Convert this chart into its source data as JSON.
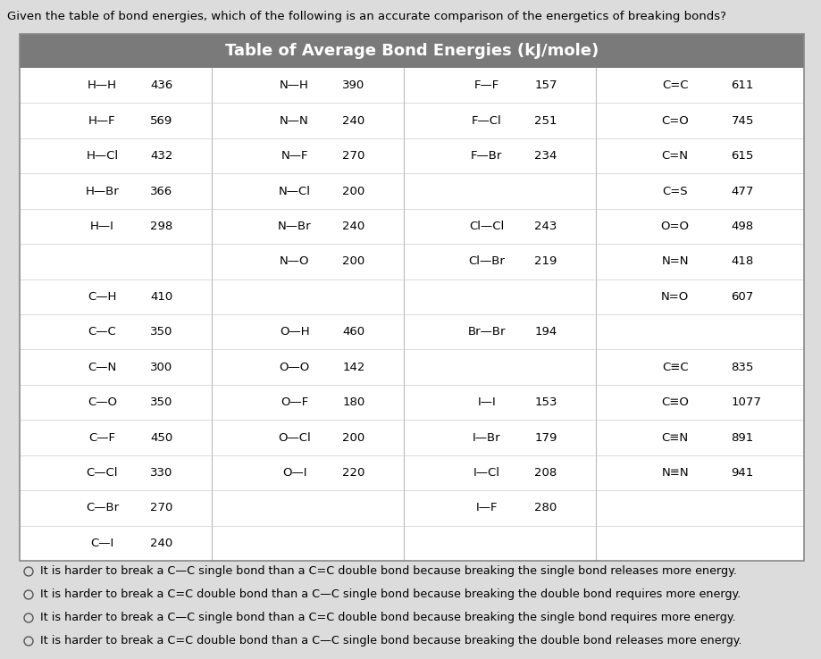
{
  "question": "Given the table of bond energies, which of the following is an accurate comparison of the energetics of breaking bonds?",
  "title": "Table of Average Bond Energies (kJ/mole)",
  "bg_color": "#dcdcdc",
  "header_bg": "#7a7a7a",
  "col1": [
    [
      "H—H",
      "436"
    ],
    [
      "H—F",
      "569"
    ],
    [
      "H—Cl",
      "432"
    ],
    [
      "H—Br",
      "366"
    ],
    [
      "H—I",
      "298"
    ],
    [
      "",
      ""
    ],
    [
      "C—H",
      "410"
    ],
    [
      "C—C",
      "350"
    ],
    [
      "C—N",
      "300"
    ],
    [
      "C—O",
      "350"
    ],
    [
      "C—F",
      "450"
    ],
    [
      "C—Cl",
      "330"
    ],
    [
      "C—Br",
      "270"
    ],
    [
      "C—I",
      "240"
    ]
  ],
  "col2": [
    [
      "N—H",
      "390"
    ],
    [
      "N—N",
      "240"
    ],
    [
      "N—F",
      "270"
    ],
    [
      "N—Cl",
      "200"
    ],
    [
      "N—Br",
      "240"
    ],
    [
      "N—O",
      "200"
    ],
    [
      "",
      ""
    ],
    [
      "O—H",
      "460"
    ],
    [
      "O—O",
      "142"
    ],
    [
      "O—F",
      "180"
    ],
    [
      "O—Cl",
      "200"
    ],
    [
      "O—I",
      "220"
    ],
    [
      "",
      ""
    ],
    [
      "",
      ""
    ]
  ],
  "col3": [
    [
      "F—F",
      "157"
    ],
    [
      "F—Cl",
      "251"
    ],
    [
      "F—Br",
      "234"
    ],
    [
      "",
      ""
    ],
    [
      "Cl—Cl",
      "243"
    ],
    [
      "Cl—Br",
      "219"
    ],
    [
      "",
      ""
    ],
    [
      "Br—Br",
      "194"
    ],
    [
      "",
      ""
    ],
    [
      "I—I",
      "153"
    ],
    [
      "I—Br",
      "179"
    ],
    [
      "I—Cl",
      "208"
    ],
    [
      "I—F",
      "280"
    ],
    [
      "",
      ""
    ]
  ],
  "col4": [
    [
      "C=C",
      "611"
    ],
    [
      "C=O",
      "745"
    ],
    [
      "C=N",
      "615"
    ],
    [
      "C=S",
      "477"
    ],
    [
      "O=O",
      "498"
    ],
    [
      "N=N",
      "418"
    ],
    [
      "N=O",
      "607"
    ],
    [
      "",
      ""
    ],
    [
      "C≡C",
      "835"
    ],
    [
      "C≡O",
      "1077"
    ],
    [
      "C≡N",
      "891"
    ],
    [
      "N≡N",
      "941"
    ],
    [
      "",
      ""
    ],
    [
      "",
      ""
    ]
  ],
  "answers": [
    "It is harder to break a C—C single bond than a C=C double bond because breaking the single bond releases more energy.",
    "It is harder to break a C=C double bond than a C—C single bond because breaking the double bond requires more energy.",
    "It is harder to break a C—C single bond than a C=C double bond because breaking the single bond requires more energy.",
    "It is harder to break a C=C double bond than a C—C single bond because breaking the double bond releases more energy."
  ],
  "answer_fontsize": 9.2,
  "question_fontsize": 9.5,
  "table_fontsize": 9.5,
  "title_fontsize": 13
}
